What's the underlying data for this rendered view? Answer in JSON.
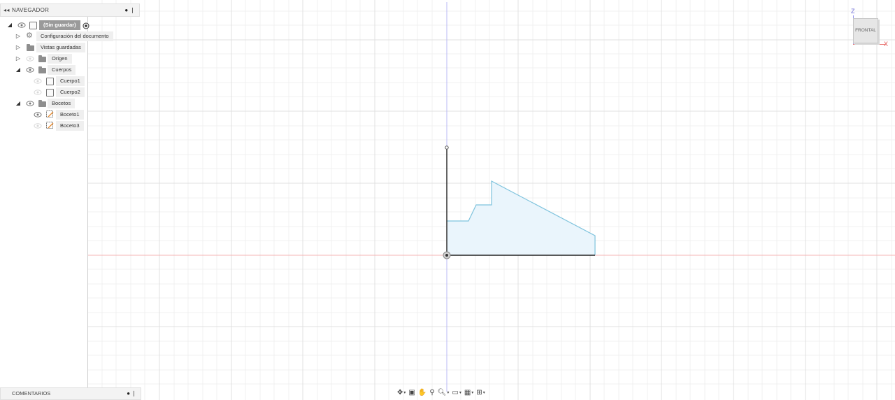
{
  "navigator": {
    "title": "NAVEGADOR",
    "collapse_icon": "double-chevron-left-icon",
    "pin_icon": "dot-pin-icon",
    "document": {
      "label": "(Sin guardar)",
      "record_icon": "radio-target-icon"
    },
    "items": [
      {
        "label": "Configuración del documento",
        "icon": "gear-icon"
      },
      {
        "label": "Vistas guardadas",
        "icon": "folder-icon"
      },
      {
        "label": "Origen",
        "icon": "folder-icon"
      },
      {
        "label": "Cuerpos",
        "icon": "folder-icon",
        "children": [
          {
            "label": "Cuerpo1"
          },
          {
            "label": "Cuerpo2"
          }
        ]
      },
      {
        "label": "Bocetos",
        "icon": "folder-icon",
        "children": [
          {
            "label": "Boceto1"
          },
          {
            "label": "Boceto3"
          }
        ]
      }
    ]
  },
  "comments": {
    "title": "COMENTARIOS"
  },
  "viewcube": {
    "face_label": "FRONTAL",
    "axis_z": "Z",
    "axis_x": "X"
  },
  "colors": {
    "grid_minor": "#f1f1f1",
    "grid_major": "#e2e2e2",
    "axis_vertical": "#b5b5f5",
    "axis_horizontal": "#f4b2b2",
    "sketch_line": "#7ec3dd",
    "profile_fill": "#eaf5fc",
    "sketch_constrained": "#222222"
  },
  "toolbar": {
    "buttons": [
      {
        "icon": "orbit-icon",
        "has_dropdown": true
      },
      {
        "icon": "look-at-icon",
        "has_dropdown": false
      },
      {
        "icon": "pan-hand-icon",
        "has_dropdown": false
      },
      {
        "icon": "zoom-icon",
        "has_dropdown": false
      },
      {
        "icon": "fit-zoom-icon",
        "has_dropdown": true
      },
      {
        "icon": "display-settings-icon",
        "has_dropdown": true
      },
      {
        "icon": "grid-icon",
        "has_dropdown": true
      },
      {
        "icon": "viewports-icon",
        "has_dropdown": true
      }
    ]
  }
}
